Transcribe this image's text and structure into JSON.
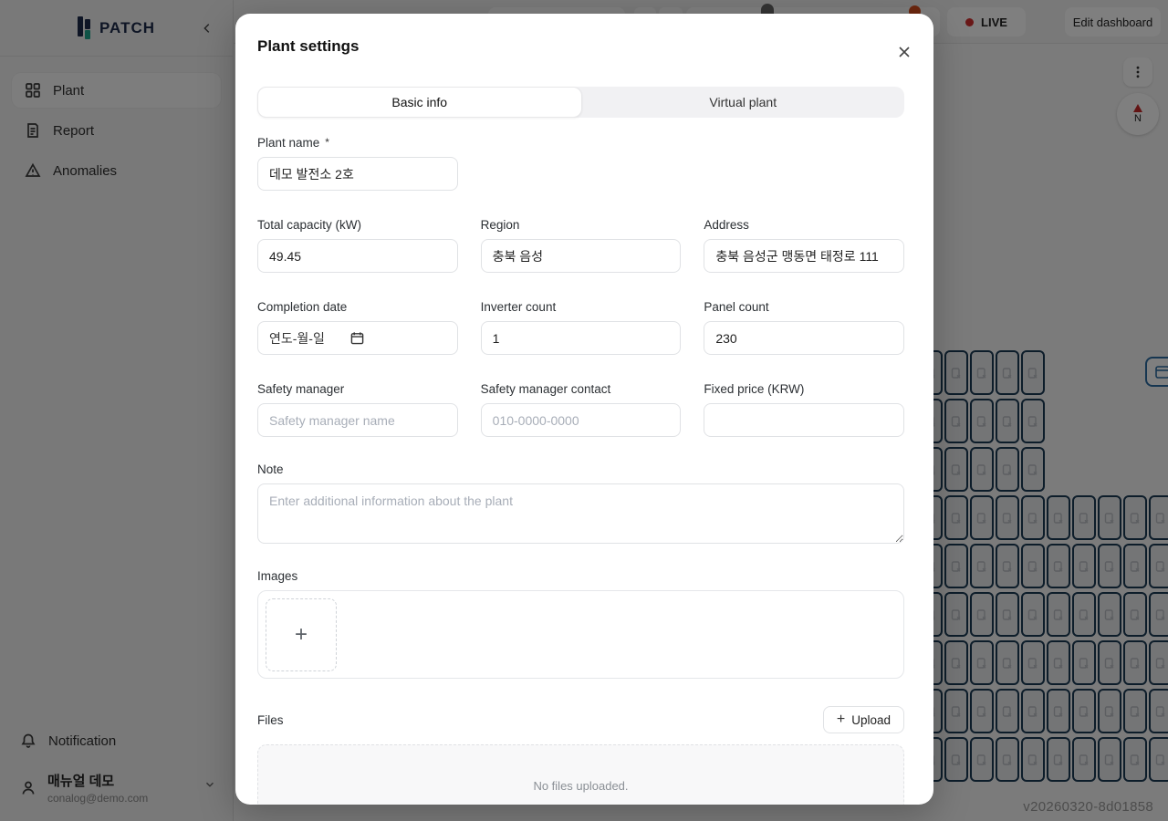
{
  "sidebar": {
    "logo_text": "PATCH",
    "nav": [
      {
        "label": "Plant",
        "icon": "grid-icon",
        "active": true
      },
      {
        "label": "Report",
        "icon": "document-icon",
        "active": false
      },
      {
        "label": "Anomalies",
        "icon": "warning-triangle-icon",
        "active": false
      }
    ],
    "notification_label": "Notification",
    "user": {
      "name": "매뉴얼 데모",
      "email": "conalog@demo.com"
    }
  },
  "topbar": {
    "live_label": "LIVE",
    "edit_dashboard_label": "Edit dashboard"
  },
  "map": {
    "compass_label": "N",
    "version_label": "v20260320-8d01858",
    "panel_grid": {
      "upper": {
        "cols": 5,
        "rows": 3
      },
      "lower": {
        "cols": 10,
        "rows": 6
      }
    }
  },
  "modal": {
    "title": "Plant settings",
    "tabs": [
      {
        "label": "Basic info",
        "active": true
      },
      {
        "label": "Virtual plant",
        "active": false
      }
    ],
    "fields": {
      "plant_name": {
        "label": "Plant name",
        "required_mark": "*",
        "value": "데모 발전소 2호"
      },
      "total_capacity": {
        "label": "Total capacity (kW)",
        "value": "49.45"
      },
      "region": {
        "label": "Region",
        "value": "충북 음성"
      },
      "address": {
        "label": "Address",
        "value": "충북 음성군 맹동면 태정로 111"
      },
      "completion_date": {
        "label": "Completion date",
        "placeholder": "연도-월-일"
      },
      "inverter_count": {
        "label": "Inverter count",
        "value": "1"
      },
      "panel_count": {
        "label": "Panel count",
        "value": "230"
      },
      "safety_manager": {
        "label": "Safety manager",
        "placeholder": "Safety manager name"
      },
      "safety_manager_contact": {
        "label": "Safety manager contact",
        "placeholder": "010-0000-0000"
      },
      "fixed_price": {
        "label": "Fixed price (KRW)",
        "placeholder": ""
      },
      "note": {
        "label": "Note",
        "placeholder": "Enter additional information about the plant"
      }
    },
    "images_section": {
      "label": "Images"
    },
    "files_section": {
      "label": "Files",
      "upload_label": "Upload",
      "empty_text": "No files uploaded."
    }
  },
  "colors": {
    "live_dot": "#d32f2f",
    "compass_needle": "#c62828",
    "panel_border": "#1b3a55",
    "logo_navy": "#1c2b4a",
    "logo_teal": "#1fa68e",
    "side_button_blue": "#2d6da3",
    "timeline_marker_orange": "#d84e1f",
    "overlay": "rgba(0,0,0,0.5)"
  }
}
